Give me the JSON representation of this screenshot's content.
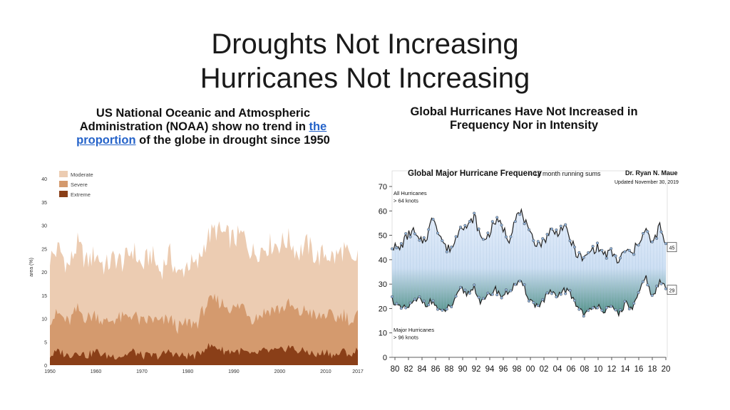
{
  "slide": {
    "title_line1": "Droughts Not Increasing",
    "title_line2": "Hurricanes Not Increasing",
    "left_caption_a": "US National Oceanic and Atmospheric",
    "left_caption_b": "Administration (NOAA) show no trend in ",
    "left_caption_link1": "the",
    "left_caption_link2": "proportion",
    "left_caption_c": " of the globe in drought since 1950",
    "right_caption_line1": "Global Hurricanes Have Not  Increased in",
    "right_caption_line2": "Frequency Nor in Intensity"
  },
  "colors": {
    "moderate": "#ecccb2",
    "severe": "#d49a6e",
    "extreme": "#8a3f18",
    "hurricane_fill_top": "#e6eefb",
    "hurricane_fill_bottom": "#4f8f86",
    "hurricane_line": "#222222",
    "hurricane_dot": "#8fb0d6"
  },
  "chart_data": [
    {
      "type": "area",
      "title": "",
      "xlabel": "",
      "ylabel": "area (%)",
      "xlim": [
        1950,
        2017
      ],
      "ylim": [
        0,
        42
      ],
      "yticks": [
        "0",
        "5",
        "10",
        "15",
        "20",
        "25",
        "30",
        "35",
        "40"
      ],
      "xticks": [
        "1950",
        "1960",
        "1970",
        "1980",
        "1990",
        "2000",
        "2010",
        "2017"
      ],
      "legend": [
        "Moderate",
        "Severe",
        "Extreme"
      ],
      "legend_position": "top-left",
      "series": [
        {
          "name": "Moderate",
          "x": [
            1950,
            1952,
            1954,
            1956,
            1958,
            1960,
            1962,
            1964,
            1966,
            1968,
            1970,
            1972,
            1974,
            1976,
            1978,
            1980,
            1982,
            1984,
            1986,
            1988,
            1990,
            1992,
            1994,
            1996,
            1998,
            2000,
            2002,
            2004,
            2006,
            2008,
            2010,
            2012,
            2014,
            2016,
            2017
          ],
          "values": [
            23,
            25,
            21,
            26,
            22,
            24,
            21,
            23,
            22,
            25,
            21,
            24,
            20,
            24,
            19,
            22,
            21,
            27,
            29,
            28,
            27,
            28,
            24,
            25,
            26,
            26,
            27,
            24,
            26,
            23,
            24,
            23,
            25,
            21,
            24
          ]
        },
        {
          "name": "Severe",
          "x": [
            1950,
            1952,
            1954,
            1956,
            1958,
            1960,
            1962,
            1964,
            1966,
            1968,
            1970,
            1972,
            1974,
            1976,
            1978,
            1980,
            1982,
            1984,
            1986,
            1988,
            1990,
            1992,
            1994,
            1996,
            1998,
            2000,
            2002,
            2004,
            2006,
            2008,
            2010,
            2012,
            2014,
            2016,
            2017
          ],
          "values": [
            10,
            11,
            9,
            12,
            10,
            11,
            9,
            10,
            10,
            11,
            9,
            10,
            9,
            10,
            8,
            9,
            9,
            13,
            14,
            13,
            12,
            13,
            10,
            11,
            12,
            12,
            13,
            11,
            12,
            10,
            11,
            10,
            11,
            9,
            11
          ]
        },
        {
          "name": "Extreme",
          "x": [
            1950,
            1952,
            1954,
            1956,
            1958,
            1960,
            1962,
            1964,
            1966,
            1968,
            1970,
            1972,
            1974,
            1976,
            1978,
            1980,
            1982,
            1984,
            1986,
            1988,
            1990,
            1992,
            1994,
            1996,
            1998,
            2000,
            2002,
            2004,
            2006,
            2008,
            2010,
            2012,
            2014,
            2016,
            2017
          ],
          "values": [
            2,
            3,
            2,
            3,
            2,
            3,
            2,
            2,
            2,
            3,
            2,
            2,
            2,
            3,
            2,
            2,
            2,
            4,
            4,
            3,
            3,
            3,
            2,
            3,
            3,
            3,
            4,
            3,
            3,
            2,
            3,
            2,
            3,
            2,
            4
          ]
        }
      ]
    },
    {
      "type": "line",
      "title": "Global Major Hurricane Frequency",
      "subtitle": " -- 12 month running sums",
      "author": "Dr. Ryan N. Maue",
      "updated": "Updated November 30, 2019",
      "xlabel": "",
      "ylabel": "",
      "xlim": [
        1980,
        2019.9
      ],
      "ylim": [
        0,
        70
      ],
      "yticks": [
        "0",
        "10",
        "20",
        "30",
        "40",
        "50",
        "60",
        "70"
      ],
      "xticks": [
        "80",
        "82",
        "84",
        "86",
        "88",
        "90",
        "92",
        "94",
        "96",
        "98",
        "00",
        "02",
        "04",
        "06",
        "08",
        "10",
        "12",
        "14",
        "16",
        "18",
        "20"
      ],
      "annotation_all": [
        "All Hurricanes",
        "> 64 knots"
      ],
      "annotation_major": [
        "Major Hurricanes",
        "> 96 knots"
      ],
      "end_label_all": "45",
      "end_label_major": "29",
      "series": [
        {
          "name": "All Hurricanes",
          "x": [
            1980,
            1981,
            1982,
            1983,
            1984,
            1985,
            1986,
            1987,
            1988,
            1989,
            1990,
            1991,
            1992,
            1993,
            1994,
            1995,
            1996,
            1997,
            1998,
            1999,
            2000,
            2001,
            2002,
            2003,
            2004,
            2005,
            2006,
            2007,
            2008,
            2009,
            2010,
            2011,
            2012,
            2013,
            2014,
            2015,
            2016,
            2017,
            2018,
            2019,
            2019.9
          ],
          "values": [
            46,
            44,
            49,
            52,
            47,
            49,
            58,
            50,
            44,
            46,
            55,
            53,
            58,
            48,
            50,
            56,
            54,
            48,
            58,
            59,
            50,
            47,
            47,
            52,
            51,
            54,
            48,
            42,
            40,
            44,
            45,
            42,
            43,
            39,
            44,
            42,
            48,
            52,
            46,
            54,
            45
          ]
        },
        {
          "name": "Major Hurricanes",
          "x": [
            1980,
            1981,
            1982,
            1983,
            1984,
            1985,
            1986,
            1987,
            1988,
            1989,
            1990,
            1991,
            1992,
            1993,
            1994,
            1995,
            1996,
            1997,
            1998,
            1999,
            2000,
            2001,
            2002,
            2003,
            2004,
            2005,
            2006,
            2007,
            2008,
            2009,
            2010,
            2011,
            2012,
            2013,
            2014,
            2015,
            2016,
            2017,
            2018,
            2019,
            2019.9
          ],
          "values": [
            24,
            20,
            20,
            22,
            24,
            22,
            23,
            18,
            20,
            22,
            28,
            26,
            29,
            22,
            25,
            28,
            25,
            27,
            30,
            30,
            24,
            21,
            23,
            27,
            24,
            28,
            26,
            21,
            18,
            19,
            22,
            19,
            20,
            18,
            22,
            20,
            26,
            33,
            24,
            31,
            29
          ]
        }
      ]
    }
  ]
}
